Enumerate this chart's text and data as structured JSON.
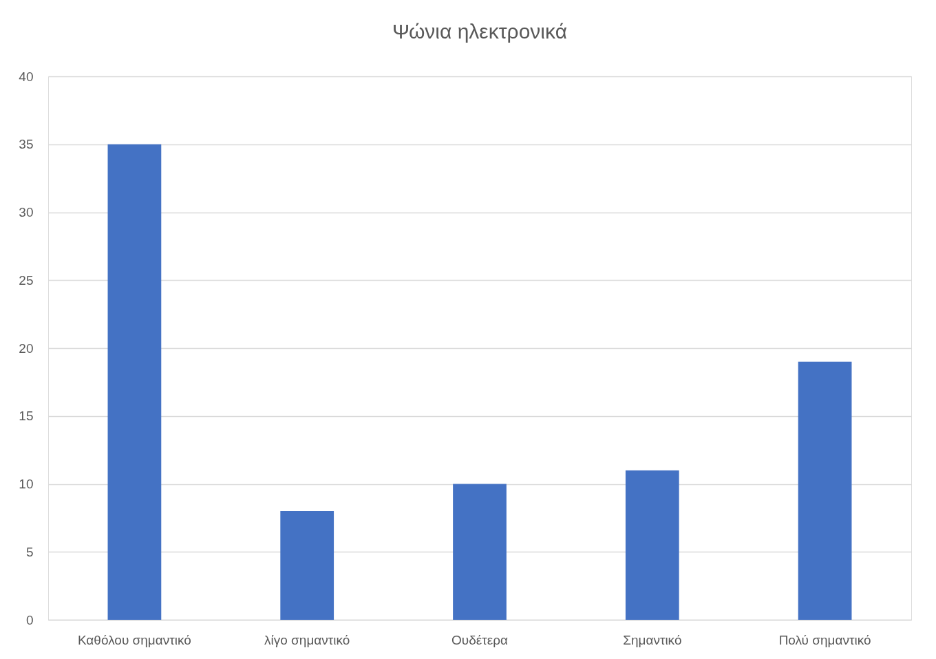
{
  "chart_data": {
    "type": "bar",
    "title": "Ψώνια ηλεκτρονικά",
    "categories": [
      "Καθόλου σημαντικό",
      "λίγο σημαντικό",
      "Ουδέτερα",
      "Σημαντικό",
      "Πολύ σημαντικό"
    ],
    "values": [
      35,
      8,
      10,
      11,
      19
    ],
    "color": "#4472c4",
    "ylim": [
      0,
      40
    ],
    "yticks": [
      0,
      5,
      10,
      15,
      20,
      25,
      30,
      35,
      40
    ],
    "grid": "y"
  }
}
